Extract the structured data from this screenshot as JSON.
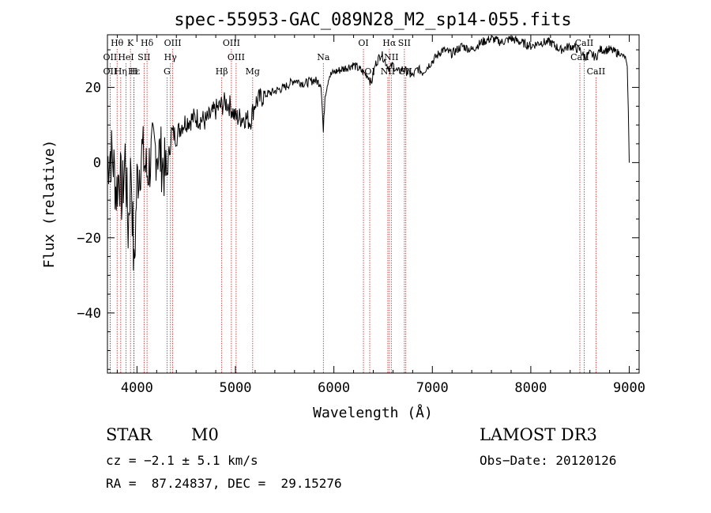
{
  "chart_data": {
    "type": "line",
    "title": "spec-55953-GAC_089N28_M2_sp14-055.fits",
    "xlabel": "Wavelength (Å)",
    "ylabel": "Flux (relative)",
    "xlim": [
      3700,
      9100
    ],
    "ylim": [
      -56,
      34
    ],
    "xticks": [
      4000,
      5000,
      6000,
      7000,
      8000,
      9000
    ],
    "yticks": [
      -40,
      -20,
      0,
      20
    ],
    "series": [
      {
        "name": "flux",
        "color": "#000000",
        "x": [
          3700,
          3730,
          3760,
          3790,
          3820,
          3850,
          3880,
          3910,
          3940,
          3970,
          4000,
          4050,
          4100,
          4150,
          4200,
          4250,
          4300,
          4350,
          4400,
          4450,
          4500,
          4600,
          4700,
          4800,
          4850,
          4900,
          4950,
          5000,
          5100,
          5150,
          5200,
          5300,
          5400,
          5500,
          5600,
          5700,
          5800,
          5870,
          5893,
          5910,
          5950,
          6000,
          6100,
          6200,
          6300,
          6350,
          6380,
          6420,
          6480,
          6520,
          6563,
          6600,
          6650,
          6700,
          6750,
          6800,
          6850,
          6900,
          7000,
          7100,
          7200,
          7300,
          7400,
          7500,
          7600,
          7700,
          7800,
          7900,
          8000,
          8100,
          8200,
          8300,
          8400,
          8500,
          8542,
          8600,
          8662,
          8700,
          8800,
          8900,
          8960,
          8980,
          8990,
          9000
        ],
        "y": [
          0,
          3,
          0,
          -8,
          -2,
          -10,
          2,
          -18,
          0,
          -30,
          -5,
          3,
          -3,
          2,
          4,
          1,
          -4,
          8,
          7,
          10,
          11,
          12,
          11,
          14,
          15,
          16,
          15,
          12,
          12,
          11,
          16,
          18,
          19,
          20,
          22,
          21,
          22,
          21,
          8,
          18,
          23,
          24,
          25,
          26,
          24,
          23,
          21,
          26,
          29,
          27,
          25,
          26,
          24,
          25,
          24,
          23,
          25,
          24,
          27,
          30,
          29,
          31,
          30,
          32,
          33,
          32,
          33,
          32,
          31,
          32,
          32,
          30,
          31,
          30,
          28,
          29,
          28,
          30,
          30,
          29,
          28,
          25,
          14,
          0
        ]
      }
    ],
    "lines": [
      {
        "name": "Hθ",
        "x": 3798,
        "tier": 0
      },
      {
        "name": "K",
        "x": 3934,
        "tier": 0
      },
      {
        "name": "Hδ",
        "x": 4102,
        "tier": 0
      },
      {
        "name": "OIII",
        "x": 4363,
        "tier": 0
      },
      {
        "name": "OIII",
        "x": 4959,
        "tier": 0
      },
      {
        "name": "OI",
        "x": 6300,
        "tier": 0
      },
      {
        "name": "Hα",
        "x": 6563,
        "tier": 0
      },
      {
        "name": "SII",
        "x": 6716,
        "tier": 0
      },
      {
        "name": "CaII",
        "x": 8542,
        "tier": 0
      },
      {
        "name": "OII",
        "x": 3727,
        "tier": 1
      },
      {
        "name": "HeI",
        "x": 3889,
        "tier": 1
      },
      {
        "name": "SII",
        "x": 4072,
        "tier": 1
      },
      {
        "name": "Hγ",
        "x": 4340,
        "tier": 1
      },
      {
        "name": "OIII",
        "x": 5007,
        "tier": 1
      },
      {
        "name": "Na",
        "x": 5893,
        "tier": 1
      },
      {
        "name": "NII",
        "x": 6583,
        "tier": 1
      },
      {
        "name": "CaII",
        "x": 8498,
        "tier": 1
      },
      {
        "name": "OII",
        "x": 3727,
        "tier": 2
      },
      {
        "name": "Hε",
        "x": 3970,
        "tier": 2
      },
      {
        "name": "Hη",
        "x": 3835,
        "tier": 2
      },
      {
        "name": "H",
        "x": 3968,
        "tier": 2
      },
      {
        "name": "G",
        "x": 4305,
        "tier": 2
      },
      {
        "name": "Hβ",
        "x": 4861,
        "tier": 2
      },
      {
        "name": "Mg",
        "x": 5175,
        "tier": 2
      },
      {
        "name": "OI",
        "x": 6364,
        "tier": 2
      },
      {
        "name": "NII",
        "x": 6548,
        "tier": 2
      },
      {
        "name": "SII",
        "x": 6731,
        "tier": 2
      },
      {
        "name": "CaII",
        "x": 8662,
        "tier": 2
      }
    ]
  },
  "info": {
    "object_type": "STAR",
    "subclass": "M0",
    "survey": "LAMOST DR3",
    "cz": "cz = −2.1 ± 5.1 km/s",
    "obs_date": "Obs−Date: 20120126",
    "coords": "RA =  87.24837, DEC =  29.15276"
  },
  "colors": {
    "marker_line": "#cc2222",
    "axis": "#000000",
    "flux": "#000000"
  }
}
